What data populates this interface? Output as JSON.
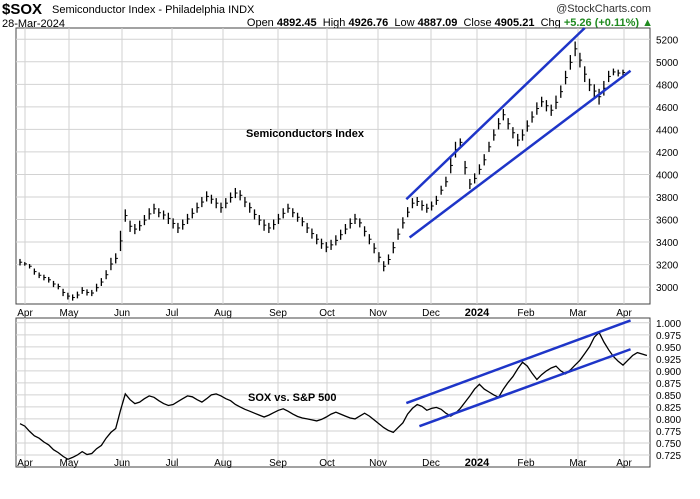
{
  "header": {
    "symbol": "$SOX",
    "full_name": "Semiconductor Index - Philadelphia  INDX",
    "date": "28-Mar-2024",
    "open_label": "Open",
    "open": "4892.45",
    "high_label": "High",
    "high": "4926.76",
    "low_label": "Low",
    "low": "4887.09",
    "close_label": "Close",
    "close": "4905.21",
    "chg_label": "Chg",
    "chg": "+5.26 (+0.11%)",
    "watermark": "@StockCharts.com"
  },
  "chart_data": [
    {
      "type": "ohlc",
      "annotation": "Semiconductors Index",
      "x_labels": [
        "Apr",
        "May",
        "Jun",
        "Jul",
        "Aug",
        "Sep",
        "Oct",
        "Nov",
        "Dec",
        "2024",
        "Feb",
        "Mar",
        "Apr"
      ],
      "y_ticks": [
        3000,
        3200,
        3400,
        3600,
        3800,
        4000,
        4200,
        4400,
        4600,
        4800,
        5000,
        5200
      ],
      "ylim": [
        2850,
        5300
      ],
      "grid": true,
      "series": [
        {
          "values": [
            [
              3192,
              3250
            ],
            [
              3190,
              3222
            ],
            [
              3165,
              3205
            ],
            [
              3110,
              3165
            ],
            [
              3080,
              3130
            ],
            [
              3060,
              3110
            ],
            [
              3040,
              3090
            ],
            [
              3000,
              3055
            ],
            [
              2980,
              3030
            ],
            [
              2920,
              2985
            ],
            [
              2890,
              2950
            ],
            [
              2880,
              2935
            ],
            [
              2900,
              2960
            ],
            [
              2940,
              3000
            ],
            [
              2925,
              2980
            ],
            [
              2920,
              2975
            ],
            [
              2960,
              3030
            ],
            [
              3010,
              3080
            ],
            [
              3070,
              3150
            ],
            [
              3150,
              3260
            ],
            [
              3210,
              3300
            ],
            [
              3320,
              3500
            ],
            [
              3580,
              3690
            ],
            [
              3490,
              3590
            ],
            [
              3470,
              3560
            ],
            [
              3500,
              3590
            ],
            [
              3550,
              3640
            ],
            [
              3600,
              3700
            ],
            [
              3650,
              3740
            ],
            [
              3620,
              3700
            ],
            [
              3600,
              3680
            ],
            [
              3560,
              3660
            ],
            [
              3520,
              3610
            ],
            [
              3480,
              3570
            ],
            [
              3510,
              3600
            ],
            [
              3560,
              3650
            ],
            [
              3610,
              3700
            ],
            [
              3660,
              3750
            ],
            [
              3710,
              3800
            ],
            [
              3760,
              3850
            ],
            [
              3740,
              3820
            ],
            [
              3700,
              3790
            ],
            [
              3660,
              3750
            ],
            [
              3700,
              3790
            ],
            [
              3750,
              3840
            ],
            [
              3790,
              3880
            ],
            [
              3770,
              3860
            ],
            [
              3710,
              3800
            ],
            [
              3660,
              3750
            ],
            [
              3600,
              3690
            ],
            [
              3550,
              3640
            ],
            [
              3500,
              3600
            ],
            [
              3480,
              3570
            ],
            [
              3510,
              3600
            ],
            [
              3560,
              3650
            ],
            [
              3610,
              3700
            ],
            [
              3660,
              3740
            ],
            [
              3620,
              3700
            ],
            [
              3580,
              3660
            ],
            [
              3540,
              3620
            ],
            [
              3480,
              3570
            ],
            [
              3430,
              3520
            ],
            [
              3380,
              3470
            ],
            [
              3340,
              3430
            ],
            [
              3310,
              3400
            ],
            [
              3330,
              3420
            ],
            [
              3370,
              3460
            ],
            [
              3420,
              3510
            ],
            [
              3470,
              3560
            ],
            [
              3520,
              3610
            ],
            [
              3560,
              3650
            ],
            [
              3530,
              3610
            ],
            [
              3450,
              3540
            ],
            [
              3380,
              3470
            ],
            [
              3300,
              3390
            ],
            [
              3220,
              3310
            ],
            [
              3140,
              3230
            ],
            [
              3200,
              3290
            ],
            [
              3300,
              3400
            ],
            [
              3420,
              3520
            ],
            [
              3520,
              3620
            ],
            [
              3620,
              3710
            ],
            [
              3700,
              3790
            ],
            [
              3720,
              3800
            ],
            [
              3680,
              3770
            ],
            [
              3660,
              3740
            ],
            [
              3680,
              3760
            ],
            [
              3730,
              3810
            ],
            [
              3820,
              3900
            ],
            [
              3890,
              3980
            ],
            [
              4010,
              4150
            ],
            [
              4150,
              4290
            ],
            [
              4250,
              4320
            ],
            [
              4000,
              4120
            ],
            [
              3870,
              3960
            ],
            [
              3920,
              4010
            ],
            [
              4000,
              4090
            ],
            [
              4080,
              4180
            ],
            [
              4200,
              4290
            ],
            [
              4300,
              4400
            ],
            [
              4400,
              4500
            ],
            [
              4480,
              4580
            ],
            [
              4400,
              4500
            ],
            [
              4320,
              4420
            ],
            [
              4250,
              4360
            ],
            [
              4300,
              4400
            ],
            [
              4380,
              4480
            ],
            [
              4460,
              4560
            ],
            [
              4530,
              4640
            ],
            [
              4600,
              4690
            ],
            [
              4560,
              4660
            ],
            [
              4520,
              4620
            ],
            [
              4580,
              4700
            ],
            [
              4680,
              4790
            ],
            [
              4800,
              4920
            ],
            [
              4930,
              5060
            ],
            [
              5050,
              5180
            ],
            [
              4950,
              5080
            ],
            [
              4820,
              4960
            ],
            [
              4740,
              4850
            ],
            [
              4680,
              4800
            ],
            [
              4620,
              4760
            ],
            [
              4700,
              4830
            ],
            [
              4820,
              4920
            ],
            [
              4880,
              4940
            ],
            [
              4870,
              4930
            ],
            [
              4880,
              4930
            ]
          ]
        }
      ],
      "trendlines": [
        {
          "x": [
            "Nov 20 2023",
            "Mar 8 2024"
          ],
          "y": [
            3780,
            5300
          ]
        },
        {
          "x": [
            "Nov 22 2023",
            "Apr 5 2024"
          ],
          "y": [
            3440,
            4920
          ]
        }
      ]
    },
    {
      "type": "line",
      "annotation": "SOX vs. S&P 500",
      "x_labels": [
        "Apr",
        "May",
        "Jun",
        "Jul",
        "Aug",
        "Sep",
        "Oct",
        "Nov",
        "Dec",
        "2024",
        "Feb",
        "Mar",
        "Apr"
      ],
      "y_ticks": [
        0.725,
        0.75,
        0.775,
        0.8,
        0.825,
        0.85,
        0.875,
        0.9,
        0.925,
        0.95,
        0.975,
        1.0
      ],
      "y_tick_labels": [
        "0.725",
        "0.750",
        "0.775",
        "0.800",
        "0.825",
        "0.850",
        "0.875",
        "0.900",
        "0.925",
        "0.950",
        "0.975",
        "1.000"
      ],
      "ylim": [
        0.7,
        1.01
      ],
      "grid": true,
      "series": [
        {
          "values": [
            0.79,
            0.785,
            0.774,
            0.765,
            0.76,
            0.752,
            0.746,
            0.736,
            0.73,
            0.722,
            0.716,
            0.72,
            0.725,
            0.732,
            0.726,
            0.728,
            0.738,
            0.745,
            0.76,
            0.772,
            0.78,
            0.818,
            0.852,
            0.84,
            0.832,
            0.835,
            0.842,
            0.848,
            0.845,
            0.838,
            0.832,
            0.828,
            0.83,
            0.836,
            0.842,
            0.848,
            0.846,
            0.84,
            0.835,
            0.842,
            0.85,
            0.852,
            0.848,
            0.842,
            0.838,
            0.83,
            0.825,
            0.82,
            0.816,
            0.812,
            0.808,
            0.804,
            0.808,
            0.813,
            0.818,
            0.821,
            0.816,
            0.81,
            0.805,
            0.802,
            0.8,
            0.798,
            0.796,
            0.799,
            0.804,
            0.81,
            0.814,
            0.81,
            0.806,
            0.802,
            0.8,
            0.806,
            0.812,
            0.806,
            0.798,
            0.79,
            0.782,
            0.776,
            0.772,
            0.782,
            0.792,
            0.81,
            0.822,
            0.83,
            0.826,
            0.818,
            0.822,
            0.824,
            0.82,
            0.812,
            0.806,
            0.812,
            0.822,
            0.835,
            0.848,
            0.862,
            0.872,
            0.862,
            0.856,
            0.85,
            0.845,
            0.862,
            0.876,
            0.888,
            0.904,
            0.918,
            0.91,
            0.895,
            0.882,
            0.892,
            0.9,
            0.906,
            0.91,
            0.9,
            0.894,
            0.902,
            0.912,
            0.922,
            0.936,
            0.95,
            0.97,
            0.98,
            0.96,
            0.944,
            0.93,
            0.92,
            0.912,
            0.922,
            0.932,
            0.938,
            0.935,
            0.932
          ]
        }
      ],
      "trendlines": [
        {
          "x": [
            "Nov 20 2023",
            "Apr 5 2024"
          ],
          "y": [
            0.833,
            1.005
          ]
        },
        {
          "x": [
            "Nov 28 2023",
            "Apr 5 2024"
          ],
          "y": [
            0.785,
            0.945
          ]
        }
      ]
    }
  ]
}
